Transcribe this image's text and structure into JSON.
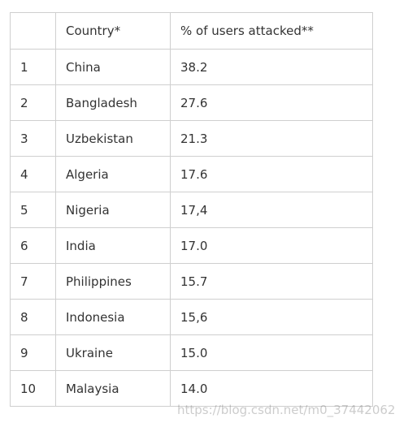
{
  "table": {
    "headers": [
      "",
      "Country*",
      "% of users attacked**"
    ],
    "rows": [
      {
        "rank": "1",
        "country": "China",
        "percent": "38.2"
      },
      {
        "rank": "2",
        "country": "Bangladesh",
        "percent": "27.6"
      },
      {
        "rank": "3",
        "country": "Uzbekistan",
        "percent": "21.3"
      },
      {
        "rank": "4",
        "country": "Algeria",
        "percent": "17.6"
      },
      {
        "rank": "5",
        "country": "Nigeria",
        "percent": "17,4"
      },
      {
        "rank": "6",
        "country": "India",
        "percent": "17.0"
      },
      {
        "rank": "7",
        "country": "Philippines",
        "percent": "15.7"
      },
      {
        "rank": "8",
        "country": "Indonesia",
        "percent": "15,6"
      },
      {
        "rank": "9",
        "country": "Ukraine",
        "percent": "15.0"
      },
      {
        "rank": "10",
        "country": "Malaysia",
        "percent": "14.0"
      }
    ]
  },
  "watermark": "https://blog.csdn.net/m0_37442062"
}
